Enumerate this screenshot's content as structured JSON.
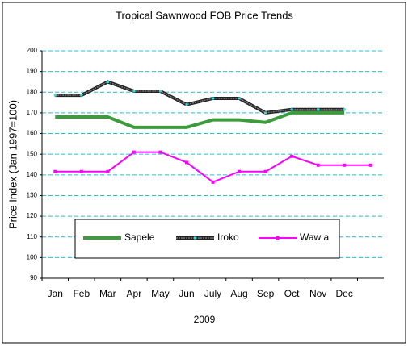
{
  "chart_data": {
    "type": "line",
    "title": "Tropical Sawnwood FOB Price Trends",
    "ylabel": "Price Index (Jan 1997=100)",
    "xlabel": "2009",
    "categories": [
      "Jan",
      "Feb",
      "Mar",
      "Apr",
      "May",
      "Jun",
      "July",
      "Aug",
      "Sep",
      "Oct",
      "Nov",
      "Dec",
      null
    ],
    "series": [
      {
        "name": "Sapele",
        "color": "#3c9c3c",
        "values": [
          168,
          168,
          168,
          163,
          163,
          163,
          166.6,
          166.6,
          165.4,
          170,
          170,
          170,
          null
        ]
      },
      {
        "name": "Iroko",
        "color": "#222222",
        "values": [
          178.5,
          178.5,
          185,
          180.5,
          180.5,
          174,
          177,
          177,
          170,
          171.6,
          171.6,
          171.6,
          null
        ]
      },
      {
        "name": "Waw a",
        "color": "#ff00ff",
        "values": [
          141.6,
          141.6,
          141.6,
          151,
          151,
          146,
          136.5,
          141.6,
          141.6,
          149,
          144.7,
          144.7,
          144.7
        ]
      }
    ],
    "ylim": [
      90,
      200
    ],
    "yticks": [
      90,
      100,
      110,
      120,
      130,
      140,
      150,
      160,
      170,
      180,
      190,
      200
    ],
    "grid": true
  }
}
